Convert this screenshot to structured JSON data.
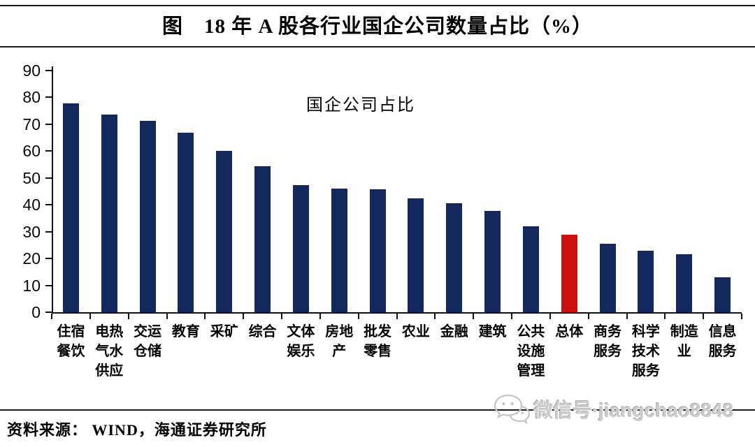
{
  "title": "图　18 年 A 股各行业国企公司数量占比（%）",
  "series_label": "国企公司占比",
  "source_note": "资料来源： WIND，海通证券研究所",
  "watermark": {
    "icon": "wechat-icon",
    "text": "微信号·jiangchao8848"
  },
  "colors": {
    "bar": "#13295e",
    "highlight": "#cc1010",
    "axis": "#111111",
    "watermark": "#cbcbcb"
  },
  "chart_data": {
    "type": "bar",
    "title": "图　18 年 A 股各行业国企公司数量占比（%）",
    "series_label": "国企公司占比",
    "categories": [
      "住宿餐饮",
      "电热气水供应",
      "交运仓储",
      "教育",
      "采矿",
      "综合",
      "文体娱乐",
      "房地产",
      "批发零售",
      "农业",
      "金融",
      "建筑",
      "公共设施管理",
      "总体",
      "商务服务",
      "科学技术服务",
      "制造业",
      "信息服务"
    ],
    "category_lines": [
      [
        "住宿",
        "餐饮"
      ],
      [
        "电热",
        "气水",
        "供应"
      ],
      [
        "交运",
        "仓储"
      ],
      [
        "教育"
      ],
      [
        "采矿"
      ],
      [
        "综合"
      ],
      [
        "文体",
        "娱乐"
      ],
      [
        "房地",
        "产"
      ],
      [
        "批发",
        "零售"
      ],
      [
        "农业"
      ],
      [
        "金融"
      ],
      [
        "建筑"
      ],
      [
        "公共",
        "设施",
        "管理"
      ],
      [
        "总体"
      ],
      [
        "商务",
        "服务"
      ],
      [
        "科学",
        "技术",
        "服务"
      ],
      [
        "制造",
        "业"
      ],
      [
        "信息",
        "服务"
      ]
    ],
    "values": [
      77.9,
      73.7,
      71.2,
      66.8,
      60.2,
      54.5,
      47.4,
      46.0,
      45.7,
      42.4,
      40.7,
      37.6,
      32.0,
      29.0,
      25.4,
      22.9,
      21.6,
      12.9
    ],
    "highlight_index": 13,
    "highlight_category": "总体",
    "ylim": [
      0,
      90
    ],
    "yticks": [
      0,
      10,
      20,
      30,
      40,
      50,
      60,
      70,
      80,
      90
    ],
    "grid": false,
    "legend_position": "inside-top-center"
  }
}
